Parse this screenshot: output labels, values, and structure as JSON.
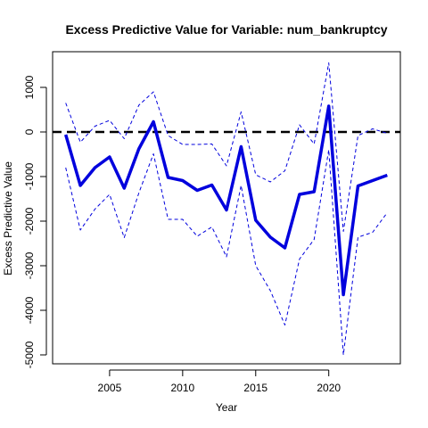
{
  "chart_data": {
    "type": "line",
    "title": "Excess Predictive Value for Variable: num_bankruptcy",
    "xlabel": "Year",
    "ylabel": "Excess Predictive Value",
    "xlim": [
      2001.1,
      2024.9
    ],
    "ylim": [
      -5200,
      1800
    ],
    "x_ticks": [
      2005,
      2010,
      2015,
      2020
    ],
    "y_ticks": [
      -5000,
      -4000,
      -3000,
      -2000,
      -1000,
      0,
      1000
    ],
    "x": [
      2002,
      2003,
      2004,
      2005,
      2006,
      2007,
      2008,
      2009,
      2010,
      2011,
      2012,
      2013,
      2014,
      2015,
      2016,
      2017,
      2018,
      2019,
      2020,
      2021,
      2022,
      2023,
      2024
    ],
    "series": [
      {
        "role": "estimate",
        "color": "#0000dd",
        "style": "solid",
        "values": [
          -60,
          -1200,
          -800,
          -560,
          -1260,
          -380,
          230,
          -1020,
          -1090,
          -1310,
          -1190,
          -1750,
          -330,
          -1980,
          -2360,
          -2600,
          -1400,
          -1340,
          580,
          -3650,
          -1210,
          -1090,
          -970
        ]
      },
      {
        "role": "upper",
        "color": "#0000dd",
        "style": "dashed",
        "values": [
          650,
          -230,
          130,
          260,
          -150,
          600,
          900,
          -80,
          -280,
          -280,
          -270,
          -760,
          450,
          -960,
          -1120,
          -870,
          160,
          -270,
          1550,
          -2230,
          -80,
          70,
          -30
        ]
      },
      {
        "role": "lower",
        "color": "#0000dd",
        "style": "dashed",
        "values": [
          -800,
          -2200,
          -1730,
          -1400,
          -2370,
          -1370,
          -490,
          -1960,
          -1960,
          -2340,
          -2130,
          -2800,
          -1200,
          -3000,
          -3560,
          -4330,
          -2850,
          -2410,
          -400,
          -5000,
          -2360,
          -2250,
          -1810
        ]
      }
    ],
    "reference_line": {
      "y": 0,
      "style": "dashed",
      "color": "#000000"
    }
  }
}
